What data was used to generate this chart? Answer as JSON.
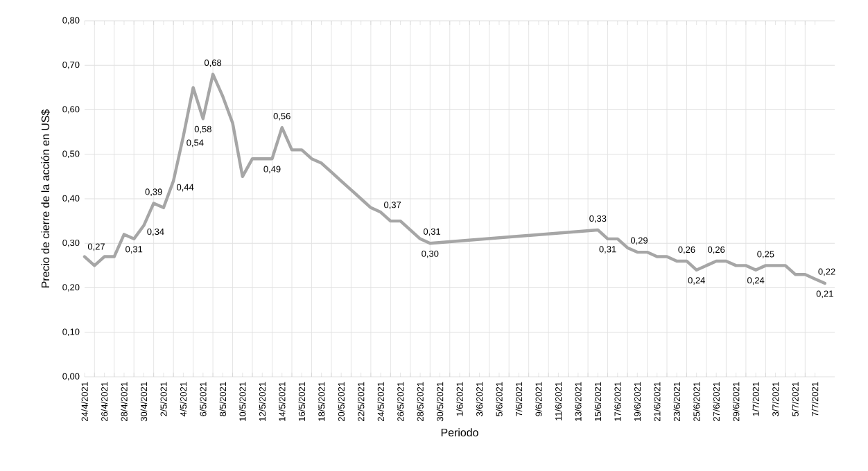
{
  "chart_data": {
    "type": "line",
    "xlabel": "Periodo",
    "ylabel": "Precio de cierre de la acción en US$",
    "x": [
      "2021-04-24",
      "2021-04-25",
      "2021-04-26",
      "2021-04-27",
      "2021-04-28",
      "2021-04-29",
      "2021-04-30",
      "2021-05-01",
      "2021-05-02",
      "2021-05-03",
      "2021-05-04",
      "2021-05-05",
      "2021-05-06",
      "2021-05-07",
      "2021-05-08",
      "2021-05-09",
      "2021-05-10",
      "2021-05-11",
      "2021-05-12",
      "2021-05-13",
      "2021-05-14",
      "2021-05-15",
      "2021-05-16",
      "2021-05-17",
      "2021-05-18",
      "2021-05-19",
      "2021-05-20",
      "2021-05-21",
      "2021-05-22",
      "2021-05-23",
      "2021-05-24",
      "2021-05-25",
      "2021-05-26",
      "2021-05-27",
      "2021-05-28",
      "2021-05-29",
      "2021-06-15",
      "2021-06-16",
      "2021-06-17",
      "2021-06-18",
      "2021-06-19",
      "2021-06-20",
      "2021-06-21",
      "2021-06-22",
      "2021-06-23",
      "2021-06-24",
      "2021-06-25",
      "2021-06-26",
      "2021-06-27",
      "2021-06-28",
      "2021-06-29",
      "2021-06-30",
      "2021-07-01",
      "2021-07-02",
      "2021-07-03",
      "2021-07-04",
      "2021-07-05",
      "2021-07-06",
      "2021-07-07",
      "2021-07-08"
    ],
    "series": [
      {
        "color": "#a6a6a6",
        "values": [
          0.27,
          0.25,
          0.27,
          0.27,
          0.32,
          0.31,
          0.34,
          0.39,
          0.38,
          0.44,
          0.54,
          0.65,
          0.58,
          0.68,
          0.63,
          0.57,
          0.45,
          0.49,
          0.49,
          0.49,
          0.56,
          0.51,
          0.51,
          0.49,
          0.48,
          0.46,
          0.44,
          0.42,
          0.4,
          0.38,
          0.37,
          0.35,
          0.35,
          0.33,
          0.31,
          0.3,
          0.33,
          0.31,
          0.31,
          0.29,
          0.28,
          0.28,
          0.27,
          0.27,
          0.26,
          0.26,
          0.24,
          0.25,
          0.26,
          0.26,
          0.25,
          0.25,
          0.24,
          0.25,
          0.25,
          0.25,
          0.23,
          0.23,
          0.22,
          0.21
        ],
        "value_labels": [
          "0,27",
          null,
          null,
          null,
          null,
          "0,31",
          "0,34",
          "0,39",
          null,
          "0,44",
          "0,54",
          null,
          "0,58",
          "0,68",
          null,
          null,
          null,
          null,
          null,
          "0,49",
          "0,56",
          null,
          null,
          null,
          null,
          null,
          null,
          null,
          null,
          null,
          "0,37",
          null,
          null,
          null,
          "0,31",
          "0,30",
          "0,33",
          "0,31",
          null,
          "0,29",
          null,
          null,
          null,
          null,
          null,
          "0,26",
          "0,24",
          null,
          "0,26",
          null,
          null,
          null,
          "0,24",
          "0,25",
          null,
          null,
          null,
          null,
          "0,22",
          "0,21"
        ]
      }
    ],
    "xlim": [
      "2021-04-24",
      "2021-07-09"
    ],
    "xticks": [
      {
        "value": "2021-04-24",
        "label": "24/4/2021"
      },
      {
        "value": "2021-04-26",
        "label": "26/4/2021"
      },
      {
        "value": "2021-04-28",
        "label": "28/4/2021"
      },
      {
        "value": "2021-04-30",
        "label": "30/4/2021"
      },
      {
        "value": "2021-05-02",
        "label": "2/5/2021"
      },
      {
        "value": "2021-05-04",
        "label": "4/5/2021"
      },
      {
        "value": "2021-05-06",
        "label": "6/5/2021"
      },
      {
        "value": "2021-05-08",
        "label": "8/5/2021"
      },
      {
        "value": "2021-05-10",
        "label": "10/5/2021"
      },
      {
        "value": "2021-05-12",
        "label": "12/5/2021"
      },
      {
        "value": "2021-05-14",
        "label": "14/5/2021"
      },
      {
        "value": "2021-05-16",
        "label": "16/5/2021"
      },
      {
        "value": "2021-05-18",
        "label": "18/5/2021"
      },
      {
        "value": "2021-05-20",
        "label": "20/5/2021"
      },
      {
        "value": "2021-05-22",
        "label": "22/5/2021"
      },
      {
        "value": "2021-05-24",
        "label": "24/5/2021"
      },
      {
        "value": "2021-05-26",
        "label": "26/5/2021"
      },
      {
        "value": "2021-05-28",
        "label": "28/5/2021"
      },
      {
        "value": "2021-05-30",
        "label": "30/5/2021"
      },
      {
        "value": "2021-06-01",
        "label": "1/6/2021"
      },
      {
        "value": "2021-06-03",
        "label": "3/6/2021"
      },
      {
        "value": "2021-06-05",
        "label": "5/6/2021"
      },
      {
        "value": "2021-06-07",
        "label": "7/6/2021"
      },
      {
        "value": "2021-06-09",
        "label": "9/6/2021"
      },
      {
        "value": "2021-06-11",
        "label": "11/6/2021"
      },
      {
        "value": "2021-06-13",
        "label": "13/6/2021"
      },
      {
        "value": "2021-06-15",
        "label": "15/6/2021"
      },
      {
        "value": "2021-06-17",
        "label": "17/6/2021"
      },
      {
        "value": "2021-06-19",
        "label": "19/6/2021"
      },
      {
        "value": "2021-06-21",
        "label": "21/6/2021"
      },
      {
        "value": "2021-06-23",
        "label": "23/6/2021"
      },
      {
        "value": "2021-06-25",
        "label": "25/6/2021"
      },
      {
        "value": "2021-06-27",
        "label": "27/6/2021"
      },
      {
        "value": "2021-06-29",
        "label": "29/6/2021"
      },
      {
        "value": "2021-07-01",
        "label": "1/7/2021"
      },
      {
        "value": "2021-07-03",
        "label": "3/7/2021"
      },
      {
        "value": "2021-07-05",
        "label": "5/7/2021"
      },
      {
        "value": "2021-07-07",
        "label": "7/7/2021"
      }
    ],
    "ylim": [
      0,
      0.8
    ],
    "yticks": [
      {
        "value": 0,
        "label": "0,00"
      },
      {
        "value": 0.1,
        "label": "0,10"
      },
      {
        "value": 0.2,
        "label": "0,20"
      },
      {
        "value": 0.3,
        "label": "0,30"
      },
      {
        "value": 0.4,
        "label": "0,40"
      },
      {
        "value": 0.5,
        "label": "0,50"
      },
      {
        "value": 0.6,
        "label": "0,60"
      },
      {
        "value": 0.7,
        "label": "0,70"
      },
      {
        "value": 0.8,
        "label": "0,80"
      }
    ],
    "grid": true,
    "marker": "none",
    "line_style": "solid"
  }
}
